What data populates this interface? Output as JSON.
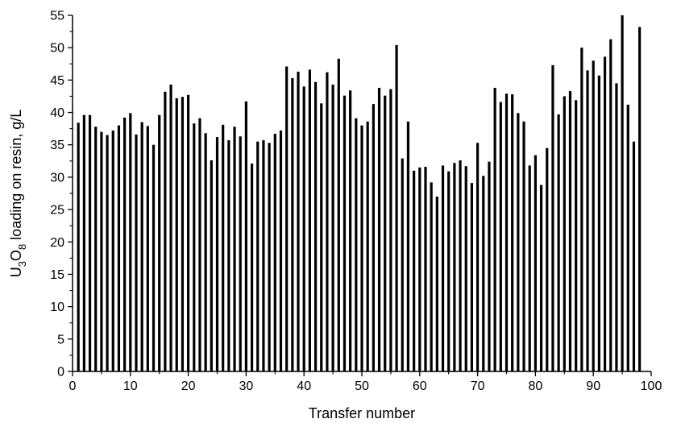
{
  "chart_data": {
    "type": "bar",
    "title": "",
    "xlabel": "Transfer number",
    "ylabel": {
      "parts": [
        {
          "text": "U",
          "sub": false
        },
        {
          "text": "3",
          "sub": true
        },
        {
          "text": "O",
          "sub": false
        },
        {
          "text": "8",
          "sub": true
        },
        {
          "text": " loading on resin, g/L",
          "sub": false
        }
      ]
    },
    "xlim": [
      0,
      100
    ],
    "ylim": [
      0,
      55
    ],
    "x_ticks": [
      0,
      10,
      20,
      30,
      40,
      50,
      60,
      70,
      80,
      90,
      100
    ],
    "y_ticks": [
      0,
      5,
      10,
      15,
      20,
      25,
      30,
      35,
      40,
      45,
      50,
      55
    ],
    "grid": false,
    "bar_color": "#000000",
    "x": [
      1,
      2,
      3,
      4,
      5,
      6,
      7,
      8,
      9,
      10,
      11,
      12,
      13,
      14,
      15,
      16,
      17,
      18,
      19,
      20,
      21,
      22,
      23,
      24,
      25,
      26,
      27,
      28,
      29,
      30,
      31,
      32,
      33,
      34,
      35,
      36,
      37,
      38,
      39,
      40,
      41,
      42,
      43,
      44,
      45,
      46,
      47,
      48,
      49,
      50,
      51,
      52,
      53,
      54,
      55,
      56,
      57,
      58,
      59,
      60,
      61,
      62,
      63,
      64,
      65,
      66,
      67,
      68,
      69,
      70,
      71,
      72,
      73,
      74,
      75,
      76,
      77,
      78,
      79,
      80,
      81,
      82,
      83,
      84,
      85,
      86,
      87,
      88,
      89,
      90,
      91,
      92,
      93,
      94,
      95,
      96,
      97,
      98
    ],
    "values": [
      38.4,
      39.6,
      39.6,
      37.8,
      37.0,
      36.5,
      37.2,
      38.0,
      39.2,
      39.9,
      36.6,
      38.5,
      37.9,
      35.0,
      39.6,
      43.2,
      44.3,
      42.2,
      42.4,
      42.7,
      38.3,
      39.1,
      36.8,
      32.6,
      36.2,
      38.1,
      35.7,
      37.8,
      36.3,
      41.7,
      32.1,
      35.5,
      35.7,
      35.3,
      36.7,
      37.2,
      47.1,
      45.3,
      46.3,
      44.0,
      46.6,
      44.7,
      41.4,
      46.2,
      44.3,
      48.3,
      42.6,
      43.4,
      39.1,
      38.0,
      38.6,
      41.3,
      43.8,
      42.6,
      43.6,
      50.4,
      32.9,
      38.6,
      31.0,
      31.5,
      31.6,
      29.2,
      27.0,
      31.8,
      30.9,
      32.2,
      32.6,
      31.7,
      29.1,
      35.3,
      30.2,
      32.4,
      43.8,
      41.6,
      42.9,
      42.8,
      39.9,
      38.6,
      31.8,
      33.4,
      28.8,
      34.5,
      47.3,
      39.7,
      42.5,
      43.3,
      41.9,
      50.0,
      46.5,
      48.0,
      45.7,
      48.6,
      51.3,
      44.5,
      55.0,
      41.2,
      35.5,
      53.2
    ]
  }
}
